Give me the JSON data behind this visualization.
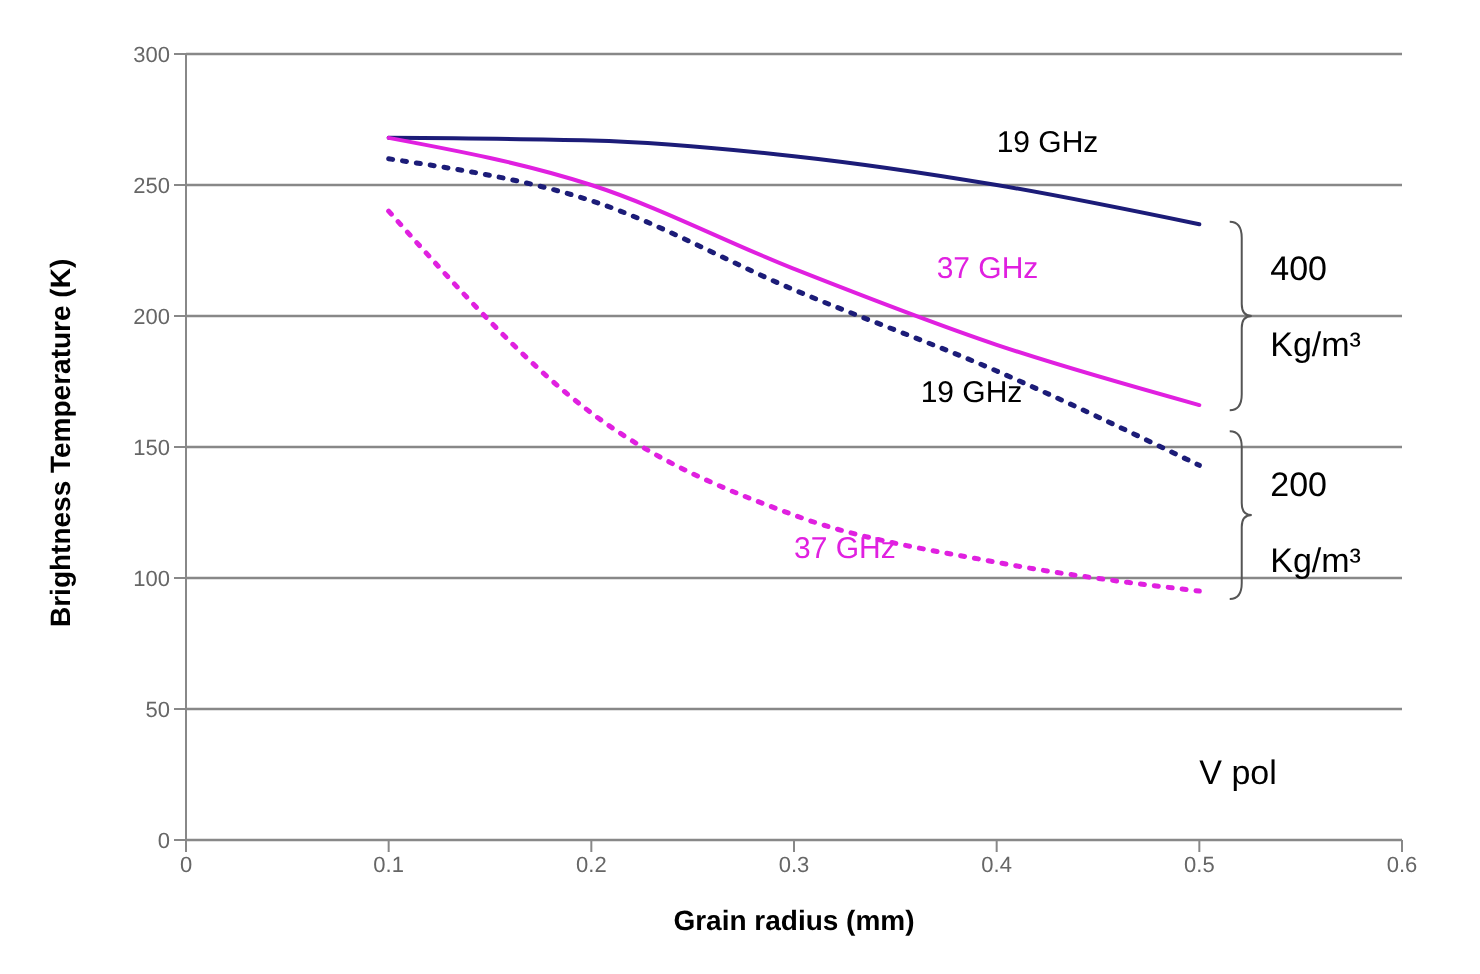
{
  "chart_data": {
    "type": "line",
    "xlabel": "Grain radius (mm)",
    "ylabel": "Brightness Temperature (K)",
    "xlim": [
      0,
      0.6
    ],
    "xticks": [
      0,
      0.1,
      0.2,
      0.3,
      0.4,
      0.5,
      0.6
    ],
    "ylim": [
      0,
      300
    ],
    "yticks": [
      0,
      50,
      100,
      150,
      200,
      250,
      300
    ],
    "grid": "y",
    "legend": false,
    "marker": "none",
    "x": [
      0.1,
      0.2,
      0.3,
      0.4,
      0.5
    ],
    "series": [
      {
        "name": "19 GHz",
        "color": "#1c1c78",
        "line_style": "solid",
        "values": [
          268,
          267,
          261,
          250,
          235
        ]
      },
      {
        "name": "37 GHz",
        "color": "#e020e0",
        "line_style": "solid",
        "values": [
          268,
          250,
          218,
          189,
          166
        ]
      },
      {
        "name": "19 GHz",
        "color": "#1c1c78",
        "line_style": "dotted",
        "values": [
          260,
          244,
          210,
          179,
          143
        ]
      },
      {
        "name": "37 GHz",
        "color": "#e020e0",
        "line_style": "dotted",
        "values": [
          240,
          163,
          124,
          106,
          95
        ]
      }
    ],
    "annotations": [
      "400 Kg/m³",
      "200 Kg/m³",
      "V pol"
    ]
  }
}
